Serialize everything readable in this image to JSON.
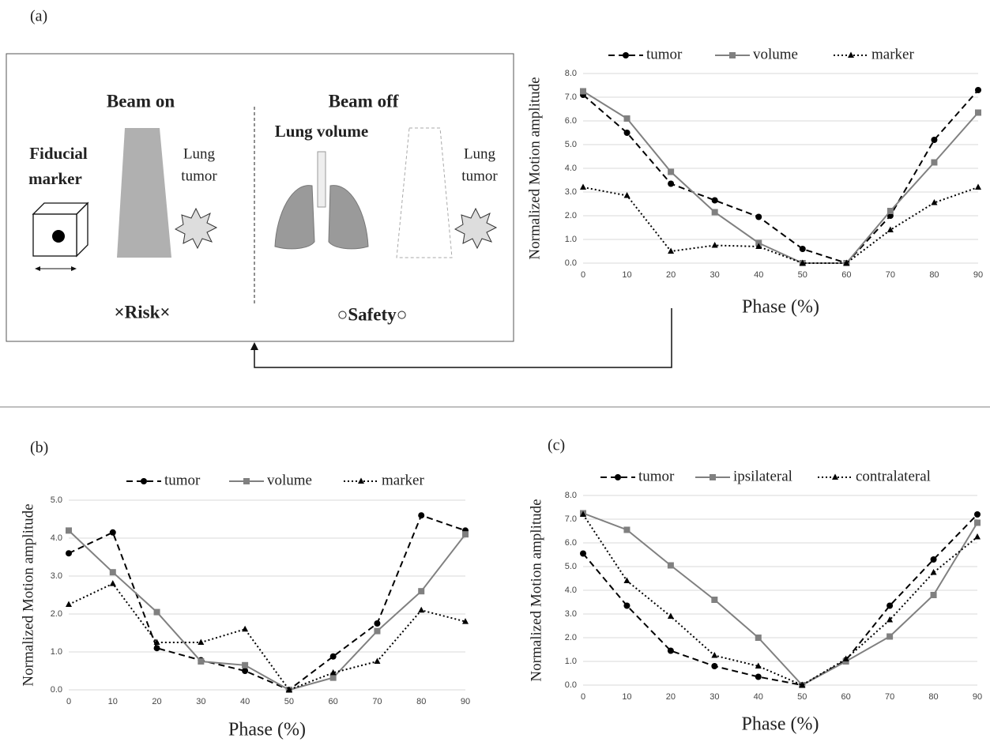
{
  "panel_labels": [
    "(a)",
    "(b)",
    "(c)"
  ],
  "diagram": {
    "beam_on": "Beam on",
    "beam_off": "Beam off",
    "fiducial_marker": [
      "Fiducial",
      "marker"
    ],
    "lung_tumor_left": [
      "Lung",
      "tumor"
    ],
    "lung_volume": "Lung volume",
    "lung_tumor_right": [
      "Lung",
      "tumor"
    ],
    "risk": "×Risk×",
    "safety": "○Safety○"
  },
  "chart_data": [
    {
      "type": "line",
      "y_label": "Normalized  Motion amplitude",
      "x_label": "Phase (%)",
      "x": [
        0,
        10,
        20,
        30,
        40,
        50,
        60,
        70,
        80,
        90
      ],
      "xlim": [
        0,
        90
      ],
      "xticks": [
        0,
        10,
        20,
        30,
        40,
        50,
        60,
        70,
        80,
        90
      ],
      "ylim": [
        0,
        8
      ],
      "yticks": [
        {
          "value": 0,
          "label": "0.0"
        },
        {
          "value": 1,
          "label": "1.0"
        },
        {
          "value": 2,
          "label": "2.0"
        },
        {
          "value": 3,
          "label": "3.0"
        },
        {
          "value": 4,
          "label": "4.0"
        },
        {
          "value": 5,
          "label": "5.0"
        },
        {
          "value": 6,
          "label": "6.0"
        },
        {
          "value": 7,
          "label": "7.0"
        },
        {
          "value": 8,
          "label": "8.0"
        }
      ],
      "grid": true,
      "legend": "top",
      "series": [
        {
          "name": "tumor",
          "color": "#000000",
          "line_style": "dashed",
          "marker": "circle",
          "values": [
            7.1,
            5.5,
            3.35,
            2.65,
            1.95,
            0.6,
            0,
            2.0,
            5.2,
            7.3
          ]
        },
        {
          "name": "volume",
          "color": "#808080",
          "line_style": "solid",
          "marker": "square",
          "values": [
            7.25,
            6.1,
            3.85,
            2.15,
            0.85,
            0,
            0,
            2.2,
            4.25,
            6.35
          ]
        },
        {
          "name": "marker",
          "color": "#000000",
          "line_style": "dotted",
          "marker": "triangle",
          "values": [
            3.2,
            2.85,
            0.5,
            0.75,
            0.7,
            0,
            0,
            1.4,
            2.55,
            3.2
          ]
        }
      ]
    },
    {
      "type": "line",
      "y_label": "Normalized  Motion amplitude",
      "x_label": "Phase (%)",
      "x": [
        0,
        10,
        20,
        30,
        40,
        50,
        60,
        70,
        80,
        90
      ],
      "xlim": [
        0,
        90
      ],
      "xticks": [
        0,
        10,
        20,
        30,
        40,
        50,
        60,
        70,
        80,
        90
      ],
      "ylim": [
        0,
        5
      ],
      "yticks": [
        {
          "value": 0,
          "label": "0.0"
        },
        {
          "value": 1,
          "label": "1.0"
        },
        {
          "value": 2,
          "label": "2.0"
        },
        {
          "value": 3,
          "label": "3.0"
        },
        {
          "value": 4,
          "label": "4.0"
        },
        {
          "value": 5,
          "label": "5.0"
        }
      ],
      "grid": true,
      "legend": "top",
      "series": [
        {
          "name": "tumor",
          "color": "#000000",
          "line_style": "dashed",
          "marker": "circle",
          "values": [
            3.6,
            4.15,
            1.1,
            0.78,
            0.5,
            0,
            0.88,
            1.75,
            4.6,
            4.2
          ]
        },
        {
          "name": "volume",
          "color": "#808080",
          "line_style": "solid",
          "marker": "square",
          "values": [
            4.2,
            3.1,
            2.05,
            0.75,
            0.65,
            0,
            0.32,
            1.55,
            2.6,
            4.1
          ]
        },
        {
          "name": "marker",
          "color": "#000000",
          "line_style": "dotted",
          "marker": "triangle",
          "values": [
            2.25,
            2.8,
            1.25,
            1.25,
            1.6,
            0,
            0.45,
            0.75,
            2.1,
            1.8
          ]
        }
      ]
    },
    {
      "type": "line",
      "y_label": "Normalized  Motion amplitude",
      "x_label": "Phase (%)",
      "x": [
        0,
        10,
        20,
        30,
        40,
        50,
        60,
        70,
        80,
        90
      ],
      "xlim": [
        0,
        90
      ],
      "xticks": [
        0,
        10,
        20,
        30,
        40,
        50,
        60,
        70,
        80,
        90
      ],
      "ylim": [
        0,
        8
      ],
      "yticks": [
        {
          "value": 0,
          "label": "0.0"
        },
        {
          "value": 1,
          "label": "1.0"
        },
        {
          "value": 2,
          "label": "2.0"
        },
        {
          "value": 3,
          "label": "3.0"
        },
        {
          "value": 4,
          "label": "4.0"
        },
        {
          "value": 5,
          "label": "5.0"
        },
        {
          "value": 6,
          "label": "6.0"
        },
        {
          "value": 7,
          "label": "7.0"
        },
        {
          "value": 8,
          "label": "8.0"
        }
      ],
      "grid": true,
      "legend": "top",
      "series": [
        {
          "name": "tumor",
          "color": "#000000",
          "line_style": "dashed",
          "marker": "circle",
          "values": [
            5.55,
            3.35,
            1.45,
            0.8,
            0.35,
            0,
            1.05,
            3.35,
            5.3,
            7.2
          ]
        },
        {
          "name": "ipsilateral",
          "color": "#808080",
          "line_style": "solid",
          "marker": "square",
          "values": [
            7.25,
            6.55,
            5.05,
            3.6,
            2.0,
            0,
            1.0,
            2.05,
            3.8,
            6.85
          ]
        },
        {
          "name": "contralateral",
          "color": "#000000",
          "line_style": "dotted",
          "marker": "triangle",
          "values": [
            7.2,
            4.4,
            2.9,
            1.25,
            0.8,
            0,
            1.1,
            2.75,
            4.75,
            6.25
          ]
        }
      ]
    }
  ]
}
